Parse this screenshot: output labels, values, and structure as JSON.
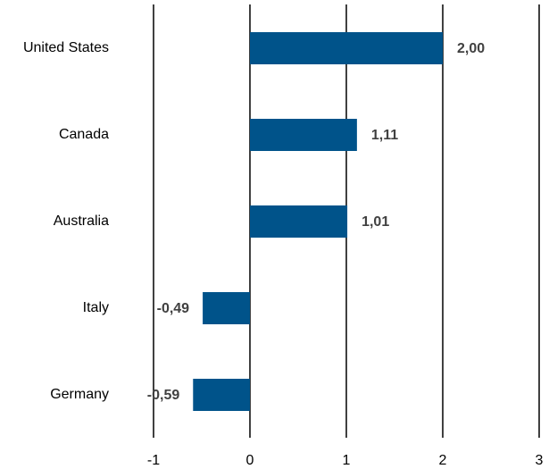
{
  "chart_data": {
    "type": "barh",
    "categories": [
      "United States",
      "Canada",
      "Australia",
      "Italy",
      "Germany"
    ],
    "values": [
      2.0,
      1.11,
      1.01,
      -0.49,
      -0.59
    ],
    "value_labels": [
      "2,00",
      "1,11",
      "1,01",
      "-0,49",
      "-0,59"
    ],
    "color": "#00538a",
    "xlim": [
      -1,
      3
    ],
    "xticks": [
      -1,
      0,
      1,
      2,
      3
    ],
    "grid": true
  }
}
